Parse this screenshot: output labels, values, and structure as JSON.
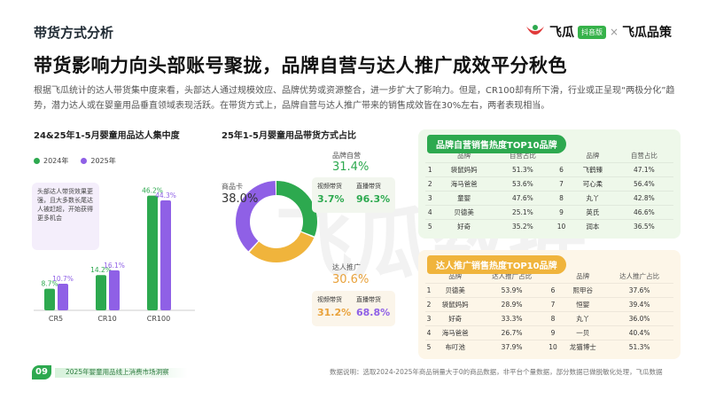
{
  "header": {
    "section_title": "带货方式分析",
    "headline": "带货影响力向头部账号聚拢，品牌自营与达人推广成效平分秋色",
    "intro": "根据飞瓜统计的达人带货集中度来看，头部达人通过规模效应、品牌优势或资源整合，进一步扩大了影响力。但是，CR100却有所下滑，行业或正呈现“两极分化”趋势，潜力达人或在婴童用品垂直领域表现活跃。在带货方式上，品牌自营与达人推广带来的销售成效皆在30%左右，两者表现相当。"
  },
  "logo": {
    "name": "飞瓜",
    "badge": "抖音版",
    "separator": "×",
    "partner": "飞瓜品策"
  },
  "watermark": "飞瓜数据",
  "colors": {
    "green": "#2da94f",
    "purple": "#8f60e6",
    "orange": "#f0b43c"
  },
  "chart_data": [
    {
      "type": "bar",
      "title": "24&25年1-5月婴童用品达人集中度",
      "categories": [
        "CR5",
        "CR10",
        "CR100"
      ],
      "series": [
        {
          "name": "2024年",
          "values": [
            8.7,
            14.2,
            46.2
          ],
          "labels": [
            "8.7%",
            "14.2%",
            "46.2%"
          ]
        },
        {
          "name": "2025年",
          "values": [
            10.7,
            16.1,
            44.3
          ],
          "labels": [
            "10.7%",
            "16.1%",
            "44.3%"
          ]
        }
      ],
      "ylim": [
        0,
        50
      ],
      "annotation": "头部达人带货效果更强，且大多数长尾达人被赶超，开始获得更多机会"
    },
    {
      "type": "pie",
      "title": "25年1-5月婴童用品带货方式占比",
      "slices": [
        {
          "label": "品牌自营",
          "value": 31.4,
          "display": "31.4%"
        },
        {
          "label": "达人推广",
          "value": 30.6,
          "display": "30.6%"
        },
        {
          "label": "商品卡",
          "value": 38.0,
          "display": "38.0%"
        }
      ],
      "breakdowns": {
        "brand": [
          {
            "label": "视频带货",
            "display": "3.7%"
          },
          {
            "label": "直播带货",
            "display": "96.3%"
          }
        ],
        "kol": [
          {
            "label": "视频带货",
            "display": "31.2%"
          },
          {
            "label": "直播带货",
            "display": "68.8%"
          }
        ]
      }
    },
    {
      "type": "table",
      "title": "品牌自营销售热度TOP10品牌",
      "columns": [
        "",
        "品牌",
        "自营占比",
        "",
        "品牌",
        "自营占比"
      ],
      "rows": [
        [
          "1",
          "袋鼠妈妈",
          "51.3%",
          "6",
          "飞鹤臻",
          "47.1%"
        ],
        [
          "2",
          "海马爸爸",
          "53.6%",
          "7",
          "可心柔",
          "56.4%"
        ],
        [
          "3",
          "童婴",
          "47.6%",
          "8",
          "丸丫",
          "42.8%"
        ],
        [
          "4",
          "贝德美",
          "25.1%",
          "9",
          "英氏",
          "46.6%"
        ],
        [
          "5",
          "好奇",
          "35.2%",
          "10",
          "润本",
          "36.5%"
        ]
      ]
    },
    {
      "type": "table",
      "title": "达人推广销售热度TOP10品牌",
      "columns": [
        "",
        "品牌",
        "达人推广占比",
        "",
        "品牌",
        "达人推广占比"
      ],
      "rows": [
        [
          "1",
          "贝德美",
          "53.9%",
          "6",
          "熙甲谷",
          "37.6%"
        ],
        [
          "2",
          "袋鼠妈妈",
          "28.9%",
          "7",
          "恒婴",
          "39.4%"
        ],
        [
          "3",
          "好奇",
          "33.3%",
          "8",
          "丸丫",
          "36.0%"
        ],
        [
          "4",
          "海马爸爸",
          "26.7%",
          "9",
          "一贝",
          "40.4%"
        ],
        [
          "5",
          "布叮池",
          "37.9%",
          "10",
          "龙猫博士",
          "51.3%"
        ]
      ]
    }
  ],
  "footer": {
    "page_number": "09",
    "report_name": "2025年婴童用品线上消费市场洞察",
    "note": "数据说明：选取2024-2025年商品销量大于0的商品数据，非平台个量数据，部分数据已做脱敏化处理，飞瓜数据"
  }
}
